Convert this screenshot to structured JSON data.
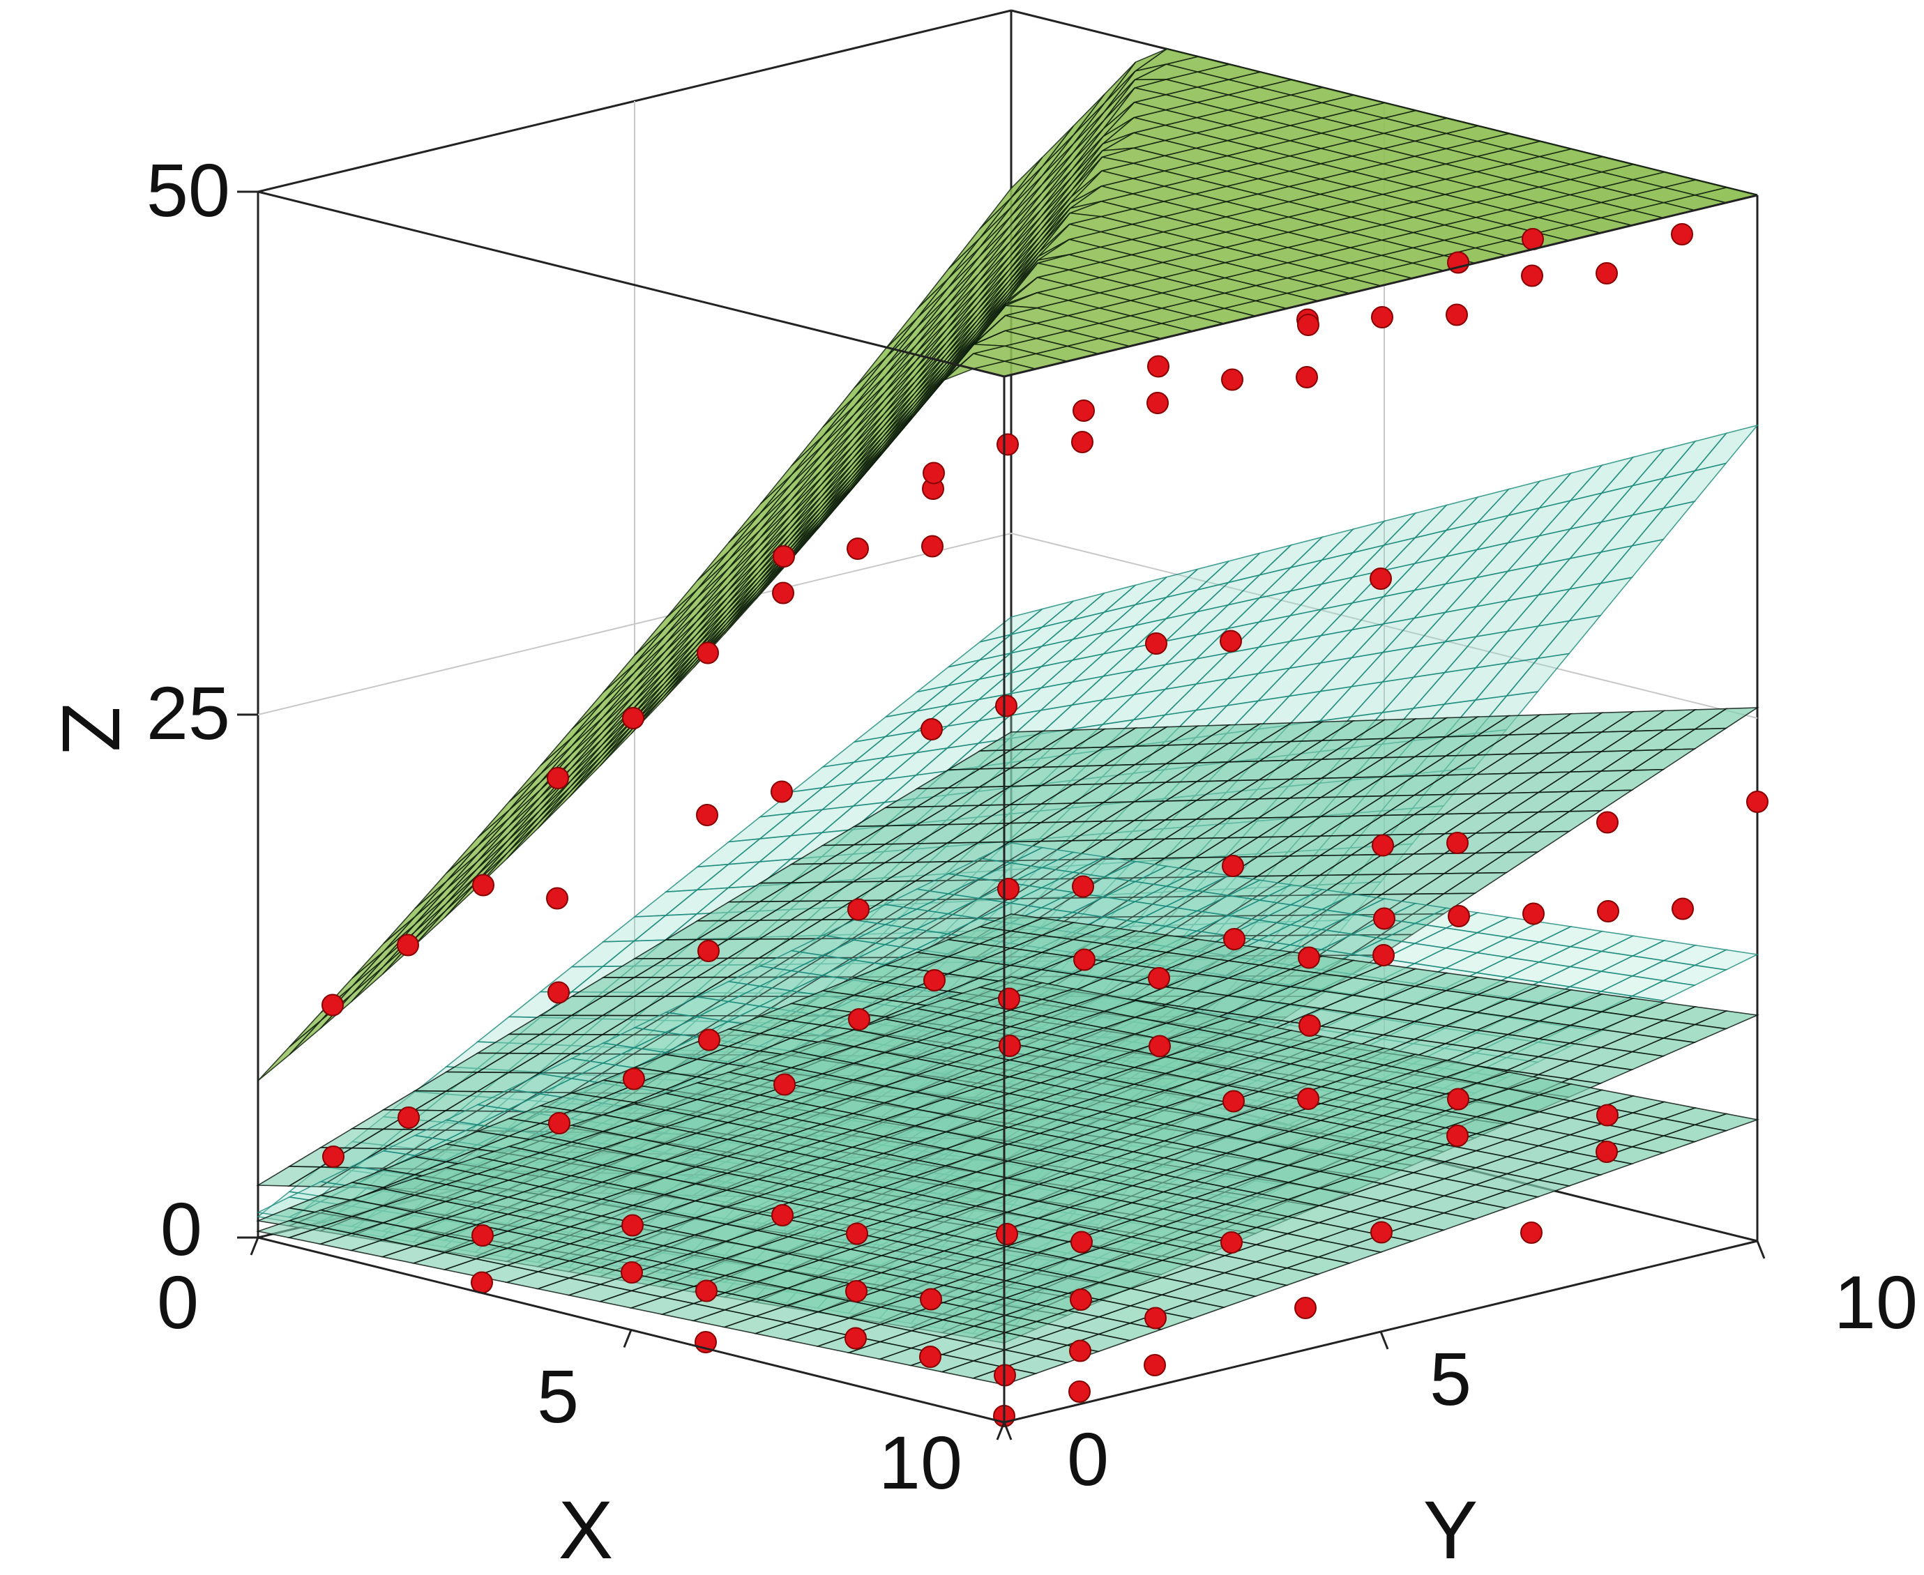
{
  "chart_data": {
    "type": "surface3d",
    "title": "",
    "xlabel": "X",
    "ylabel": "Y",
    "zlabel": "Z",
    "xlim": [
      0,
      10
    ],
    "ylim": [
      0,
      10
    ],
    "zlim": [
      0,
      50
    ],
    "xticks": [
      "0",
      "5",
      "10"
    ],
    "yticks": [
      "0",
      "5",
      "10"
    ],
    "zticks": [
      "0",
      "25",
      "50"
    ],
    "grid": true,
    "surface_formulas": [
      "a + b*X + c*Y + d*X*X + e*Y*Y + f*X*Y + g*X*X*Y",
      "a + b*X + c*Y"
    ],
    "surfaces": [
      {
        "kind": "quadratic",
        "color": "#8fbf55",
        "mesh": "#0b1a0b",
        "opacity": 0.95,
        "coef": [
          7.5,
          3.8,
          3.0,
          0.08,
          0.04,
          0.06,
          -0.002
        ]
      },
      {
        "kind": "linear",
        "color": "#8fdcc8",
        "mesh": "#1a8a7a",
        "opacity": 0.35,
        "coef": [
          1.0,
          0.3,
          2.0,
          0,
          0,
          0.15,
          0
        ]
      },
      {
        "kind": "quadratic",
        "color": "#7fcfb0",
        "mesh": "#050f0a",
        "opacity": 0.7,
        "coef": [
          2.5,
          0.8,
          1.3,
          0,
          0,
          0.02,
          0
        ]
      },
      {
        "kind": "linear",
        "color": "#9fe3d0",
        "mesh": "#1a8a7a",
        "opacity": 0.3,
        "coef": [
          1.2,
          0.35,
          0.9,
          0,
          0,
          0,
          0
        ]
      },
      {
        "kind": "quadratic",
        "color": "#7fcfb0",
        "mesh": "#050f0a",
        "opacity": 0.7,
        "coef": [
          0.8,
          0.3,
          0.6,
          0,
          0,
          0.01,
          0
        ]
      },
      {
        "kind": "quadratic",
        "color": "#7fcfb0",
        "mesh": "#050f0a",
        "opacity": 0.7,
        "coef": [
          0.3,
          0.15,
          0.35,
          0,
          0,
          0.005,
          0
        ]
      }
    ],
    "points_color": "#e0141a",
    "points": [
      [
        1,
        0,
        12
      ],
      [
        1,
        1,
        14
      ],
      [
        1,
        2,
        16
      ],
      [
        2,
        2,
        22
      ],
      [
        2,
        3,
        24
      ],
      [
        3,
        3,
        28
      ],
      [
        3,
        4,
        30
      ],
      [
        4,
        4,
        33
      ],
      [
        4,
        5,
        35
      ],
      [
        5,
        4,
        34
      ],
      [
        5,
        5,
        38
      ],
      [
        6,
        5,
        39
      ],
      [
        6,
        6,
        40
      ],
      [
        7,
        6,
        42
      ],
      [
        7,
        7,
        44
      ],
      [
        8,
        6,
        43
      ],
      [
        8,
        7,
        45
      ],
      [
        9,
        7,
        46
      ],
      [
        9,
        8,
        47
      ],
      [
        10,
        8,
        48
      ],
      [
        10,
        9,
        49
      ],
      [
        2,
        5,
        30
      ],
      [
        3,
        6,
        34
      ],
      [
        4,
        7,
        37
      ],
      [
        5,
        7,
        40
      ],
      [
        6,
        8,
        42
      ],
      [
        7,
        9,
        45
      ],
      [
        8,
        9,
        47
      ],
      [
        3,
        1,
        18
      ],
      [
        4,
        2,
        22
      ],
      [
        5,
        2,
        24
      ],
      [
        6,
        3,
        27
      ],
      [
        7,
        3,
        29
      ],
      [
        8,
        4,
        32
      ],
      [
        9,
        4,
        33
      ],
      [
        10,
        5,
        36
      ],
      [
        1,
        3,
        10
      ],
      [
        2,
        4,
        12
      ],
      [
        3,
        5,
        14
      ],
      [
        4,
        6,
        15
      ],
      [
        5,
        6,
        16
      ],
      [
        6,
        7,
        17
      ],
      [
        7,
        8,
        18
      ],
      [
        8,
        8,
        19
      ],
      [
        9,
        9,
        20
      ],
      [
        10,
        10,
        21
      ],
      [
        0,
        1,
        3
      ],
      [
        1,
        4,
        5
      ],
      [
        2,
        6,
        7
      ],
      [
        3,
        7,
        8
      ],
      [
        4,
        8,
        9
      ],
      [
        5,
        9,
        10
      ],
      [
        6,
        10,
        12
      ],
      [
        7,
        10,
        13
      ],
      [
        8,
        10,
        14
      ],
      [
        9,
        10,
        15
      ],
      [
        0,
        2,
        4
      ],
      [
        1,
        5,
        6
      ],
      [
        2,
        7,
        8
      ],
      [
        3,
        8,
        9
      ],
      [
        4,
        9,
        10
      ],
      [
        5,
        10,
        11
      ],
      [
        6,
        9,
        11
      ],
      [
        0,
        4,
        2
      ],
      [
        1,
        6,
        3
      ],
      [
        2,
        8,
        4
      ],
      [
        3,
        9,
        4
      ],
      [
        4,
        10,
        5
      ],
      [
        5,
        8,
        4
      ],
      [
        6,
        8,
        5
      ],
      [
        7,
        9,
        5
      ],
      [
        8,
        8,
        5
      ],
      [
        9,
        9,
        6
      ],
      [
        10,
        8,
        6
      ],
      [
        2,
        1,
        1
      ],
      [
        3,
        2,
        1.5
      ],
      [
        4,
        3,
        2
      ],
      [
        5,
        3,
        2
      ],
      [
        6,
        4,
        2
      ],
      [
        7,
        4,
        2.5
      ],
      [
        8,
        5,
        2.5
      ],
      [
        9,
        6,
        3
      ],
      [
        10,
        7,
        3
      ],
      [
        3,
        0,
        0.5
      ],
      [
        4,
        1,
        1
      ],
      [
        5,
        1,
        1
      ],
      [
        6,
        2,
        1
      ],
      [
        7,
        2,
        1.5
      ],
      [
        8,
        3,
        1.5
      ],
      [
        9,
        3,
        1.5
      ],
      [
        10,
        4,
        2
      ],
      [
        6,
        0,
        0.3
      ],
      [
        7,
        1,
        0.5
      ],
      [
        8,
        1,
        0.5
      ],
      [
        9,
        2,
        0.8
      ],
      [
        10,
        2,
        1
      ],
      [
        9,
        1,
        0.5
      ],
      [
        10,
        1,
        0.6
      ],
      [
        10,
        0,
        0.3
      ]
    ]
  }
}
